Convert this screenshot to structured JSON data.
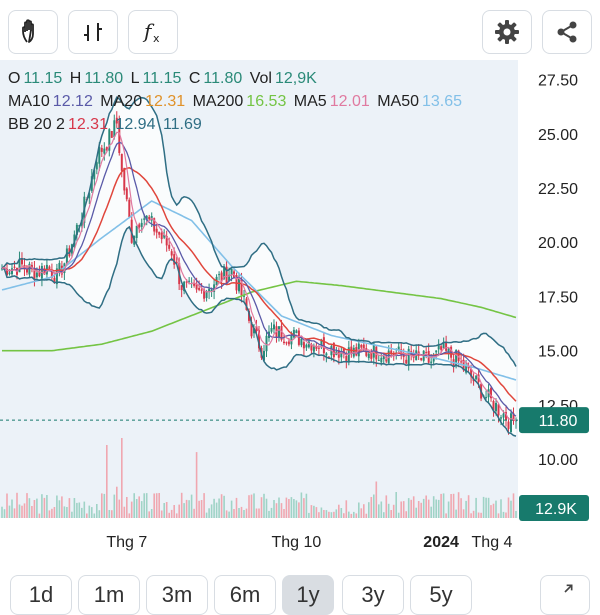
{
  "toolbar": {
    "draw_icon": "hand-icon",
    "indicator_icon": "candles-icon",
    "formula_icon": "fx-icon",
    "settings_icon": "gear-icon",
    "share_icon": "share-icon"
  },
  "ohlc": {
    "o_label": "O",
    "o_value": "11.15",
    "h_label": "H",
    "h_value": "11.80",
    "l_label": "L",
    "l_value": "11.15",
    "c_label": "C",
    "c_value": "11.80",
    "vol_label": "Vol",
    "vol_value": "12,9K"
  },
  "ma": {
    "ma10_label": "MA10",
    "ma10_value": "12.12",
    "ma20_label": "MA20",
    "ma20_value": "12.31",
    "ma200_label": "MA200",
    "ma200_value": "16.53",
    "ma5_label": "MA5",
    "ma5_value": "12.01",
    "ma50_label": "MA50",
    "ma50_value": "13.65"
  },
  "bb": {
    "label": "BB 20 2",
    "mid": "12.31",
    "upper": "12.94",
    "lower": "11.69"
  },
  "colors": {
    "up": "#2a8a78",
    "down": "#d7374a",
    "ma10": "#5a5aa8",
    "ma20": "#e0463c",
    "ma200": "#74c444",
    "ma5": "#e07aa0",
    "ma50": "#82c0e8",
    "bb": "#2f6e84",
    "price_tag": "#177a6c",
    "ma20_text": "#e0922a"
  },
  "chart_data": {
    "type": "candlestick",
    "ylim": [
      9.5,
      28.4
    ],
    "yticks": [
      "27.50",
      "25.00",
      "22.50",
      "20.00",
      "17.50",
      "15.00",
      "12.50",
      "10.00"
    ],
    "xticks": [
      "Thg 7",
      "Thg 10",
      "2024",
      "Thg 4"
    ],
    "last_price": "11.80",
    "last_price_value": 11.8,
    "last_volume": "12.9K",
    "close_key": [
      [
        0,
        18.8
      ],
      [
        8,
        18.9
      ],
      [
        14,
        18.6
      ],
      [
        18,
        18.9
      ],
      [
        22,
        18.4
      ],
      [
        26,
        19.3
      ],
      [
        34,
        22.0
      ],
      [
        38,
        24.0
      ],
      [
        42,
        24.6
      ],
      [
        46,
        25.5
      ],
      [
        48,
        23.2
      ],
      [
        52,
        20.3
      ],
      [
        56,
        21.3
      ],
      [
        60,
        20.8
      ],
      [
        64,
        20.2
      ],
      [
        68,
        19.6
      ],
      [
        72,
        18.0
      ],
      [
        78,
        17.6
      ],
      [
        82,
        17.9
      ],
      [
        88,
        18.4
      ],
      [
        92,
        18.7
      ],
      [
        96,
        17.6
      ],
      [
        100,
        16.0
      ],
      [
        104,
        15.1
      ],
      [
        108,
        15.9
      ],
      [
        116,
        15.7
      ],
      [
        124,
        15.4
      ],
      [
        132,
        15.1
      ],
      [
        140,
        14.9
      ],
      [
        148,
        15.0
      ],
      [
        156,
        14.9
      ],
      [
        164,
        14.7
      ],
      [
        172,
        14.5
      ],
      [
        176,
        15.0
      ],
      [
        182,
        14.6
      ],
      [
        188,
        13.8
      ],
      [
        194,
        12.9
      ],
      [
        200,
        12.2
      ],
      [
        204,
        11.7
      ],
      [
        206,
        11.8
      ]
    ],
    "ma50_key": [
      [
        0,
        17.8
      ],
      [
        20,
        18.4
      ],
      [
        40,
        20.2
      ],
      [
        60,
        21.9
      ],
      [
        76,
        21.0
      ],
      [
        92,
        18.9
      ],
      [
        112,
        16.6
      ],
      [
        132,
        15.7
      ],
      [
        152,
        15.2
      ],
      [
        172,
        14.7
      ],
      [
        190,
        14.2
      ],
      [
        206,
        13.65
      ]
    ],
    "ma200_key": [
      [
        0,
        15.0
      ],
      [
        20,
        15.0
      ],
      [
        40,
        15.3
      ],
      [
        60,
        15.9
      ],
      [
        80,
        16.8
      ],
      [
        100,
        17.7
      ],
      [
        118,
        18.2
      ],
      [
        136,
        18.0
      ],
      [
        156,
        17.7
      ],
      [
        176,
        17.4
      ],
      [
        192,
        17.0
      ],
      [
        206,
        16.53
      ]
    ],
    "volume_peaks": [
      [
        42,
        4.5
      ],
      [
        46,
        4.0
      ],
      [
        48,
        10.5
      ],
      [
        52,
        3.0
      ],
      [
        78,
        3.0
      ],
      [
        150,
        3.2
      ]
    ]
  }
}
